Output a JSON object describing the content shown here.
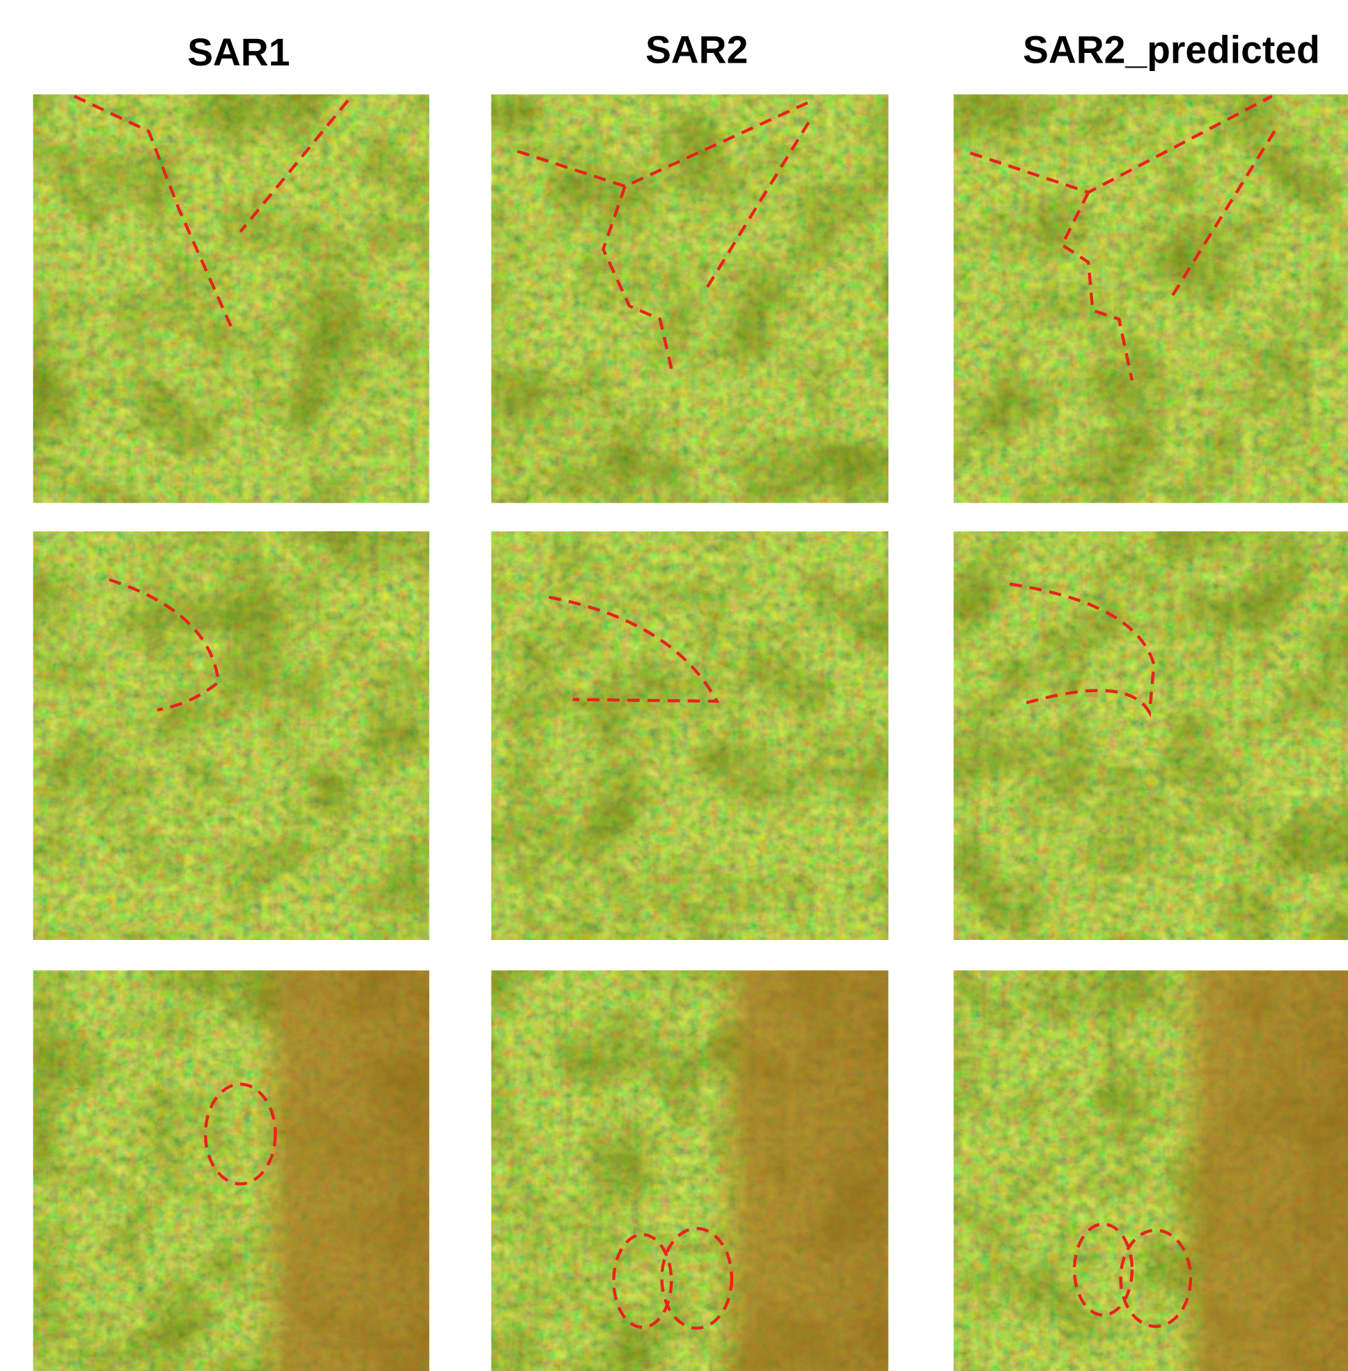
{
  "columns": [
    {
      "title": "SAR1"
    },
    {
      "title": "SAR2"
    },
    {
      "title": "SAR2_predicted"
    }
  ]
}
